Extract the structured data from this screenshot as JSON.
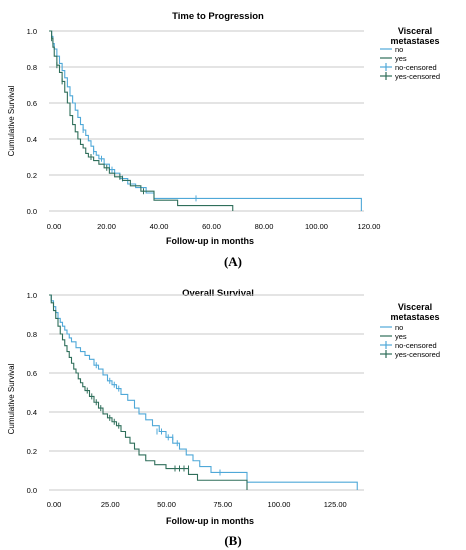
{
  "chart_data": [
    {
      "type": "line",
      "panel": "A",
      "title": "Time to Progression",
      "xlabel": "Follow-up in months",
      "ylabel": "Cumulative Survival",
      "xlim": [
        0,
        120
      ],
      "ylim": [
        0,
        1.0
      ],
      "x_ticks": [
        "0.00",
        "20.00",
        "40.00",
        "60.00",
        "80.00",
        "100.00",
        "120.00"
      ],
      "x_tick_values": [
        0,
        20,
        40,
        60,
        80,
        100,
        120
      ],
      "y_ticks": [
        "0.0",
        "0.2",
        "0.4",
        "0.6",
        "0.8",
        "1.0"
      ],
      "y_tick_values": [
        0,
        0.2,
        0.4,
        0.6,
        0.8,
        1.0
      ],
      "grid": "horizontal",
      "legend": {
        "title": "Visceral metastases",
        "entries": [
          "no",
          "yes",
          "no-censored",
          "yes-censored"
        ],
        "placement": "top-right"
      },
      "series": [
        {
          "name": "no",
          "color": "#4fa8d8",
          "steps": [
            [
              0,
              1.0
            ],
            [
              1,
              0.97
            ],
            [
              1.5,
              0.93
            ],
            [
              2,
              0.9
            ],
            [
              3,
              0.86
            ],
            [
              4,
              0.82
            ],
            [
              5,
              0.78
            ],
            [
              6,
              0.74
            ],
            [
              7,
              0.69
            ],
            [
              8,
              0.64
            ],
            [
              9,
              0.6
            ],
            [
              10,
              0.56
            ],
            [
              11,
              0.52
            ],
            [
              12,
              0.48
            ],
            [
              13,
              0.45
            ],
            [
              14,
              0.42
            ],
            [
              15,
              0.39
            ],
            [
              16,
              0.36
            ],
            [
              17,
              0.33
            ],
            [
              18,
              0.31
            ],
            [
              19,
              0.29
            ],
            [
              21,
              0.26
            ],
            [
              23,
              0.23
            ],
            [
              25,
              0.21
            ],
            [
              27,
              0.18
            ],
            [
              30,
              0.15
            ],
            [
              33,
              0.13
            ],
            [
              37,
              0.1
            ],
            [
              40,
              0.07
            ],
            [
              119,
              0.0
            ]
          ],
          "end_x": 119,
          "censored": [
            [
              13,
              0.45
            ],
            [
              17,
              0.33
            ],
            [
              20,
              0.29
            ],
            [
              24,
              0.23
            ],
            [
              28,
              0.18
            ],
            [
              56,
              0.07
            ]
          ]
        },
        {
          "name": "yes",
          "color": "#2f6e5a",
          "steps": [
            [
              0,
              1.0
            ],
            [
              1,
              0.96
            ],
            [
              1.5,
              0.91
            ],
            [
              2,
              0.86
            ],
            [
              3,
              0.81
            ],
            [
              4,
              0.77
            ],
            [
              5,
              0.72
            ],
            [
              6,
              0.66
            ],
            [
              7,
              0.6
            ],
            [
              8,
              0.53
            ],
            [
              9,
              0.48
            ],
            [
              10,
              0.44
            ],
            [
              11,
              0.4
            ],
            [
              12,
              0.37
            ],
            [
              13,
              0.35
            ],
            [
              14,
              0.32
            ],
            [
              15,
              0.3
            ],
            [
              17,
              0.28
            ],
            [
              19,
              0.26
            ],
            [
              21,
              0.24
            ],
            [
              23,
              0.21
            ],
            [
              25,
              0.19
            ],
            [
              28,
              0.17
            ],
            [
              31,
              0.14
            ],
            [
              35,
              0.11
            ],
            [
              40,
              0.06
            ],
            [
              49,
              0.03
            ],
            [
              70,
              0.0
            ]
          ],
          "end_x": 70,
          "censored": [
            [
              1,
              0.96
            ],
            [
              3,
              0.81
            ],
            [
              5,
              0.72
            ],
            [
              16,
              0.3
            ],
            [
              22,
              0.24
            ],
            [
              27,
              0.19
            ],
            [
              36,
              0.11
            ]
          ]
        }
      ]
    },
    {
      "type": "line",
      "panel": "B",
      "title": "Overall Survival",
      "xlabel": "Follow-up in months",
      "ylabel": "Cumulative Survival",
      "xlim": [
        0,
        140
      ],
      "ylim": [
        0,
        1.0
      ],
      "x_ticks": [
        "0.00",
        "25.00",
        "50.00",
        "75.00",
        "100.00",
        "125.00"
      ],
      "x_tick_values": [
        0,
        25,
        50,
        75,
        100,
        125
      ],
      "y_ticks": [
        "0.0",
        "0.2",
        "0.4",
        "0.6",
        "0.8",
        "1.0"
      ],
      "y_tick_values": [
        0,
        0.2,
        0.4,
        0.6,
        0.8,
        1.0
      ],
      "grid": "horizontal",
      "legend": {
        "title": "Visceral metastases",
        "entries": [
          "no",
          "yes",
          "no-censored",
          "yes-censored"
        ],
        "placement": "top-right"
      },
      "series": [
        {
          "name": "no",
          "color": "#4fa8d8",
          "steps": [
            [
              0,
              1.0
            ],
            [
              1,
              0.97
            ],
            [
              2,
              0.94
            ],
            [
              3,
              0.91
            ],
            [
              4,
              0.88
            ],
            [
              5,
              0.86
            ],
            [
              6,
              0.84
            ],
            [
              7,
              0.82
            ],
            [
              8,
              0.8
            ],
            [
              9,
              0.78
            ],
            [
              10,
              0.76
            ],
            [
              12,
              0.73
            ],
            [
              14,
              0.71
            ],
            [
              16,
              0.69
            ],
            [
              18,
              0.67
            ],
            [
              20,
              0.64
            ],
            [
              22,
              0.62
            ],
            [
              24,
              0.59
            ],
            [
              26,
              0.56
            ],
            [
              28,
              0.54
            ],
            [
              30,
              0.52
            ],
            [
              32,
              0.49
            ],
            [
              35,
              0.46
            ],
            [
              38,
              0.42
            ],
            [
              40,
              0.39
            ],
            [
              43,
              0.36
            ],
            [
              46,
              0.33
            ],
            [
              49,
              0.3
            ],
            [
              52,
              0.27
            ],
            [
              55,
              0.24
            ],
            [
              58,
              0.21
            ],
            [
              61,
              0.18
            ],
            [
              64,
              0.15
            ],
            [
              67,
              0.12
            ],
            [
              72,
              0.09
            ],
            [
              88,
              0.04
            ],
            [
              137,
              0.0
            ]
          ],
          "end_x": 137,
          "censored": [
            [
              21,
              0.64
            ],
            [
              27,
              0.56
            ],
            [
              29,
              0.54
            ],
            [
              31,
              0.52
            ],
            [
              48,
              0.3
            ],
            [
              50,
              0.3
            ],
            [
              53,
              0.27
            ],
            [
              55,
              0.27
            ],
            [
              57,
              0.24
            ],
            [
              76,
              0.09
            ]
          ]
        },
        {
          "name": "yes",
          "color": "#2f6e5a",
          "steps": [
            [
              0,
              1.0
            ],
            [
              1,
              0.96
            ],
            [
              2,
              0.92
            ],
            [
              3,
              0.88
            ],
            [
              4,
              0.84
            ],
            [
              5,
              0.8
            ],
            [
              6,
              0.77
            ],
            [
              7,
              0.74
            ],
            [
              8,
              0.71
            ],
            [
              9,
              0.68
            ],
            [
              10,
              0.65
            ],
            [
              11,
              0.62
            ],
            [
              12,
              0.6
            ],
            [
              13,
              0.57
            ],
            [
              14,
              0.55
            ],
            [
              15,
              0.53
            ],
            [
              16,
              0.51
            ],
            [
              18,
              0.48
            ],
            [
              20,
              0.45
            ],
            [
              22,
              0.42
            ],
            [
              24,
              0.39
            ],
            [
              26,
              0.37
            ],
            [
              28,
              0.35
            ],
            [
              30,
              0.33
            ],
            [
              32,
              0.3
            ],
            [
              34,
              0.27
            ],
            [
              36,
              0.24
            ],
            [
              38,
              0.21
            ],
            [
              40,
              0.18
            ],
            [
              43,
              0.15
            ],
            [
              47,
              0.13
            ],
            [
              52,
              0.11
            ],
            [
              62,
              0.08
            ],
            [
              66,
              0.05
            ],
            [
              88,
              0.0
            ]
          ],
          "end_x": 88,
          "censored": [
            [
              17,
              0.51
            ],
            [
              19,
              0.48
            ],
            [
              21,
              0.45
            ],
            [
              23,
              0.42
            ],
            [
              27,
              0.37
            ],
            [
              29,
              0.35
            ],
            [
              31,
              0.33
            ],
            [
              56,
              0.11
            ],
            [
              58,
              0.11
            ],
            [
              60,
              0.11
            ],
            [
              62,
              0.11
            ]
          ]
        }
      ]
    }
  ],
  "captions": {
    "a": "(A)",
    "b": "(B)"
  }
}
